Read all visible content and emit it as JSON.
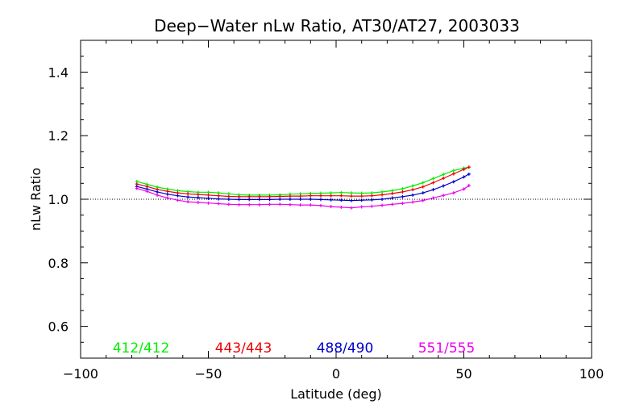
{
  "chart_data": {
    "type": "line",
    "title": "Deep−Water nLw Ratio, AT30/AT27, 2003033",
    "xlabel": "Latitude (deg)",
    "ylabel": "nLw Ratio",
    "xlim": [
      -100,
      100
    ],
    "ylim": [
      0.5,
      1.5
    ],
    "x_ticks": [
      -100,
      -50,
      0,
      50,
      100
    ],
    "x_tick_labels": [
      "−100",
      "−50",
      "0",
      "50",
      "100"
    ],
    "y_ticks": [
      0.6,
      0.8,
      1.0,
      1.2,
      1.4
    ],
    "y_tick_labels": [
      "0.6",
      "0.8",
      "1.0",
      "1.2",
      "1.4"
    ],
    "reference_line": 1.0,
    "grid": false,
    "legend_position": "bottom-inside",
    "x": [
      -78,
      -74,
      -70,
      -66,
      -62,
      -58,
      -54,
      -50,
      -46,
      -42,
      -38,
      -34,
      -30,
      -26,
      -22,
      -18,
      -14,
      -10,
      -6,
      -2,
      2,
      6,
      10,
      14,
      18,
      22,
      26,
      30,
      34,
      38,
      42,
      46,
      50,
      52
    ],
    "series": [
      {
        "name": "412/412",
        "color": "#00ee00",
        "values": [
          1.056,
          1.047,
          1.038,
          1.032,
          1.027,
          1.024,
          1.022,
          1.022,
          1.02,
          1.017,
          1.014,
          1.013,
          1.013,
          1.013,
          1.014,
          1.016,
          1.017,
          1.018,
          1.019,
          1.02,
          1.021,
          1.02,
          1.019,
          1.02,
          1.023,
          1.027,
          1.033,
          1.042,
          1.052,
          1.065,
          1.078,
          1.09,
          1.098,
          1.101
        ]
      },
      {
        "name": "443/443",
        "color": "#ee0000",
        "values": [
          1.048,
          1.04,
          1.031,
          1.025,
          1.02,
          1.017,
          1.015,
          1.013,
          1.011,
          1.009,
          1.008,
          1.008,
          1.008,
          1.008,
          1.009,
          1.01,
          1.01,
          1.011,
          1.011,
          1.011,
          1.011,
          1.01,
          1.01,
          1.011,
          1.014,
          1.018,
          1.023,
          1.03,
          1.039,
          1.052,
          1.066,
          1.08,
          1.094,
          1.101
        ]
      },
      {
        "name": "488/490",
        "color": "#0000cc",
        "values": [
          1.04,
          1.032,
          1.023,
          1.016,
          1.011,
          1.007,
          1.005,
          1.003,
          1.001,
          1.0,
          0.999,
          0.999,
          0.999,
          0.999,
          1.0,
          1.0,
          1.0,
          1.0,
          0.999,
          0.998,
          0.997,
          0.996,
          0.997,
          0.998,
          1.0,
          1.004,
          1.008,
          1.013,
          1.02,
          1.03,
          1.042,
          1.055,
          1.07,
          1.079
        ]
      },
      {
        "name": "551/555",
        "color": "#ee00ee",
        "values": [
          1.034,
          1.025,
          1.013,
          1.004,
          0.997,
          0.992,
          0.99,
          0.988,
          0.986,
          0.984,
          0.983,
          0.983,
          0.983,
          0.984,
          0.984,
          0.983,
          0.982,
          0.982,
          0.98,
          0.977,
          0.975,
          0.973,
          0.976,
          0.978,
          0.981,
          0.984,
          0.987,
          0.991,
          0.996,
          1.004,
          1.012,
          1.02,
          1.032,
          1.043
        ]
      }
    ]
  }
}
